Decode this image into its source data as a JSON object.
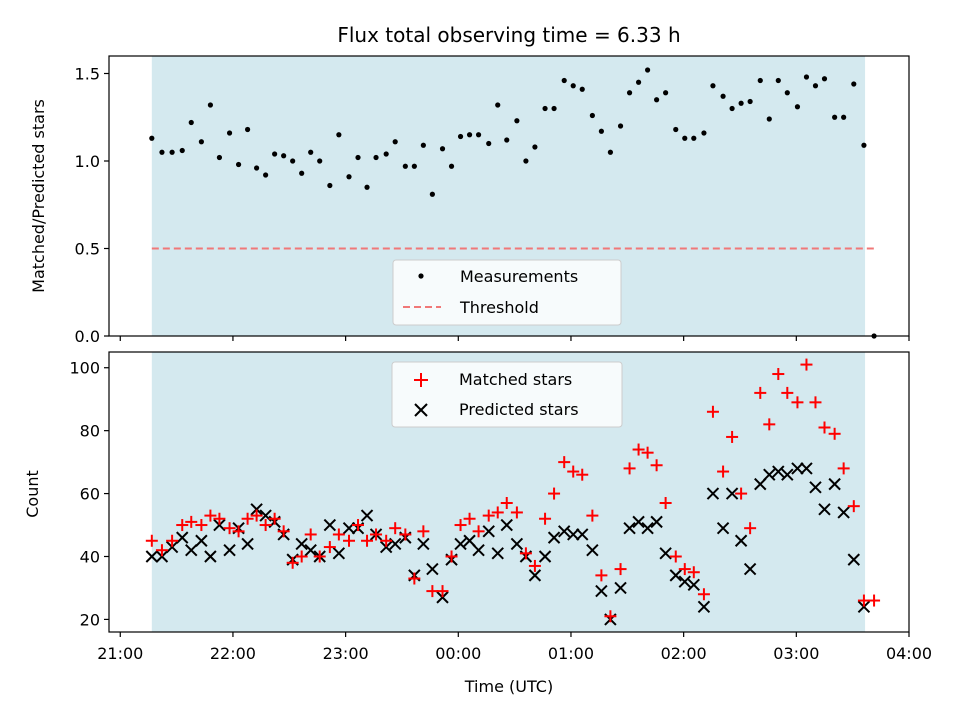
{
  "chart_data": [
    {
      "type": "scatter",
      "title": "Flux total observing time = 6.33 h",
      "xlabel": "",
      "ylabel": "Matched/Predicted stars",
      "xlim": [
        -0.1,
        7.0
      ],
      "ylim": [
        0,
        1.6
      ],
      "yticks": [
        0.0,
        0.5,
        1.0,
        1.5
      ],
      "ytick_labels": [
        "0.0",
        "0.5",
        "1.0",
        "1.5"
      ],
      "observing_window": [
        0.28,
        6.61
      ],
      "legend_position": "lower-center",
      "colors": {
        "span": "#d4e9ef",
        "points": "#000000",
        "threshold": "#f07878"
      },
      "series": [
        {
          "name": "Measurements",
          "marker": "dot",
          "points": [
            [
              0.28,
              1.13
            ],
            [
              0.37,
              1.05
            ],
            [
              0.46,
              1.05
            ],
            [
              0.55,
              1.06
            ],
            [
              0.63,
              1.22
            ],
            [
              0.72,
              1.11
            ],
            [
              0.8,
              1.32
            ],
            [
              0.88,
              1.02
            ],
            [
              0.97,
              1.16
            ],
            [
              1.05,
              0.98
            ],
            [
              1.13,
              1.18
            ],
            [
              1.21,
              0.96
            ],
            [
              1.29,
              0.92
            ],
            [
              1.37,
              1.04
            ],
            [
              1.45,
              1.03
            ],
            [
              1.53,
              1.0
            ],
            [
              1.61,
              0.93
            ],
            [
              1.69,
              1.05
            ],
            [
              1.77,
              1.0
            ],
            [
              1.86,
              0.86
            ],
            [
              1.94,
              1.15
            ],
            [
              2.03,
              0.91
            ],
            [
              2.11,
              1.02
            ],
            [
              2.19,
              0.85
            ],
            [
              2.27,
              1.02
            ],
            [
              2.36,
              1.04
            ],
            [
              2.44,
              1.11
            ],
            [
              2.53,
              0.97
            ],
            [
              2.61,
              0.97
            ],
            [
              2.69,
              1.09
            ],
            [
              2.77,
              0.81
            ],
            [
              2.86,
              1.07
            ],
            [
              2.94,
              0.97
            ],
            [
              3.02,
              1.14
            ],
            [
              3.1,
              1.15
            ],
            [
              3.18,
              1.15
            ],
            [
              3.27,
              1.1
            ],
            [
              3.35,
              1.32
            ],
            [
              3.43,
              1.12
            ],
            [
              3.52,
              1.23
            ],
            [
              3.6,
              1.0
            ],
            [
              3.68,
              1.08
            ],
            [
              3.77,
              1.3
            ],
            [
              3.85,
              1.3
            ],
            [
              3.94,
              1.46
            ],
            [
              4.02,
              1.43
            ],
            [
              4.1,
              1.41
            ],
            [
              4.19,
              1.26
            ],
            [
              4.27,
              1.17
            ],
            [
              4.35,
              1.05
            ],
            [
              4.44,
              1.2
            ],
            [
              4.52,
              1.39
            ],
            [
              4.6,
              1.45
            ],
            [
              4.68,
              1.52
            ],
            [
              4.76,
              1.35
            ],
            [
              4.84,
              1.39
            ],
            [
              4.93,
              1.18
            ],
            [
              5.01,
              1.13
            ],
            [
              5.09,
              1.13
            ],
            [
              5.18,
              1.16
            ],
            [
              5.26,
              1.43
            ],
            [
              5.35,
              1.37
            ],
            [
              5.43,
              1.3
            ],
            [
              5.51,
              1.33
            ],
            [
              5.59,
              1.34
            ],
            [
              5.68,
              1.46
            ],
            [
              5.76,
              1.24
            ],
            [
              5.84,
              1.46
            ],
            [
              5.92,
              1.39
            ],
            [
              6.01,
              1.31
            ],
            [
              6.09,
              1.48
            ],
            [
              6.17,
              1.43
            ],
            [
              6.25,
              1.47
            ],
            [
              6.34,
              1.25
            ],
            [
              6.42,
              1.25
            ],
            [
              6.51,
              1.44
            ],
            [
              6.6,
              1.09
            ],
            [
              6.69,
              0.0
            ]
          ]
        },
        {
          "name": "Threshold",
          "marker": "dashed-line",
          "x": [
            0.28,
            6.69
          ],
          "y": [
            0.5,
            0.5
          ]
        }
      ]
    },
    {
      "type": "scatter",
      "title": "",
      "xlabel": "Time (UTC)",
      "ylabel": "Count",
      "xlim": [
        -0.1,
        7.0
      ],
      "ylim": [
        16,
        105
      ],
      "yticks": [
        20,
        40,
        60,
        80,
        100
      ],
      "ytick_labels": [
        "20",
        "40",
        "60",
        "80",
        "100"
      ],
      "xticks": [
        0,
        1,
        2,
        3,
        4,
        5,
        6,
        7
      ],
      "xtick_labels": [
        "21:00",
        "22:00",
        "23:00",
        "00:00",
        "01:00",
        "02:00",
        "03:00",
        "04:00"
      ],
      "observing_window": [
        0.28,
        6.61
      ],
      "legend_position": "upper-center",
      "colors": {
        "span": "#d4e9ef",
        "matched": "#ff0000",
        "predicted": "#000000"
      },
      "series": [
        {
          "name": "Matched stars",
          "marker": "plus",
          "points": [
            [
              0.28,
              45
            ],
            [
              0.37,
              42
            ],
            [
              0.46,
              45
            ],
            [
              0.55,
              50
            ],
            [
              0.63,
              51
            ],
            [
              0.72,
              50
            ],
            [
              0.8,
              53
            ],
            [
              0.88,
              52
            ],
            [
              0.97,
              49
            ],
            [
              1.05,
              48
            ],
            [
              1.13,
              52
            ],
            [
              1.21,
              53
            ],
            [
              1.29,
              50
            ],
            [
              1.37,
              52
            ],
            [
              1.45,
              48
            ],
            [
              1.53,
              38
            ],
            [
              1.61,
              40
            ],
            [
              1.69,
              47
            ],
            [
              1.77,
              40
            ],
            [
              1.86,
              43
            ],
            [
              1.94,
              47
            ],
            [
              2.03,
              45
            ],
            [
              2.11,
              50
            ],
            [
              2.19,
              45
            ],
            [
              2.27,
              47
            ],
            [
              2.36,
              45
            ],
            [
              2.44,
              49
            ],
            [
              2.53,
              47
            ],
            [
              2.61,
              33
            ],
            [
              2.69,
              48
            ],
            [
              2.77,
              29
            ],
            [
              2.86,
              29
            ],
            [
              2.94,
              40
            ],
            [
              3.02,
              50
            ],
            [
              3.1,
              52
            ],
            [
              3.18,
              48
            ],
            [
              3.27,
              53
            ],
            [
              3.35,
              54
            ],
            [
              3.43,
              57
            ],
            [
              3.52,
              54
            ],
            [
              3.6,
              41
            ],
            [
              3.68,
              37
            ],
            [
              3.77,
              52
            ],
            [
              3.85,
              60
            ],
            [
              3.94,
              70
            ],
            [
              4.02,
              67
            ],
            [
              4.1,
              66
            ],
            [
              4.19,
              53
            ],
            [
              4.27,
              34
            ],
            [
              4.35,
              21
            ],
            [
              4.44,
              36
            ],
            [
              4.52,
              68
            ],
            [
              4.6,
              74
            ],
            [
              4.68,
              73
            ],
            [
              4.76,
              69
            ],
            [
              4.84,
              57
            ],
            [
              4.93,
              40
            ],
            [
              5.01,
              36
            ],
            [
              5.09,
              35
            ],
            [
              5.18,
              28
            ],
            [
              5.26,
              86
            ],
            [
              5.35,
              67
            ],
            [
              5.43,
              78
            ],
            [
              5.51,
              60
            ],
            [
              5.59,
              49
            ],
            [
              5.68,
              92
            ],
            [
              5.76,
              82
            ],
            [
              5.84,
              98
            ],
            [
              5.92,
              92
            ],
            [
              6.01,
              89
            ],
            [
              6.09,
              101
            ],
            [
              6.17,
              89
            ],
            [
              6.25,
              81
            ],
            [
              6.34,
              79
            ],
            [
              6.42,
              68
            ],
            [
              6.51,
              56
            ],
            [
              6.6,
              26
            ],
            [
              6.69,
              26
            ]
          ]
        },
        {
          "name": "Predicted stars",
          "marker": "x",
          "points": [
            [
              0.28,
              40
            ],
            [
              0.37,
              40
            ],
            [
              0.46,
              43
            ],
            [
              0.55,
              46
            ],
            [
              0.63,
              42
            ],
            [
              0.72,
              45
            ],
            [
              0.8,
              40
            ],
            [
              0.88,
              50
            ],
            [
              0.97,
              42
            ],
            [
              1.05,
              49
            ],
            [
              1.13,
              44
            ],
            [
              1.21,
              55
            ],
            [
              1.29,
              53
            ],
            [
              1.37,
              51
            ],
            [
              1.45,
              47
            ],
            [
              1.53,
              39
            ],
            [
              1.61,
              44
            ],
            [
              1.69,
              42
            ],
            [
              1.77,
              40
            ],
            [
              1.86,
              50
            ],
            [
              1.94,
              41
            ],
            [
              2.03,
              49
            ],
            [
              2.11,
              49
            ],
            [
              2.19,
              53
            ],
            [
              2.27,
              47
            ],
            [
              2.36,
              43
            ],
            [
              2.44,
              44
            ],
            [
              2.53,
              46
            ],
            [
              2.61,
              34
            ],
            [
              2.69,
              44
            ],
            [
              2.77,
              36
            ],
            [
              2.86,
              27
            ],
            [
              2.94,
              39
            ],
            [
              3.02,
              44
            ],
            [
              3.1,
              45
            ],
            [
              3.18,
              42
            ],
            [
              3.27,
              48
            ],
            [
              3.35,
              41
            ],
            [
              3.43,
              50
            ],
            [
              3.52,
              44
            ],
            [
              3.6,
              40
            ],
            [
              3.68,
              34
            ],
            [
              3.77,
              40
            ],
            [
              3.85,
              46
            ],
            [
              3.94,
              48
            ],
            [
              4.02,
              47
            ],
            [
              4.1,
              47
            ],
            [
              4.19,
              42
            ],
            [
              4.27,
              29
            ],
            [
              4.35,
              20
            ],
            [
              4.44,
              30
            ],
            [
              4.52,
              49
            ],
            [
              4.6,
              51
            ],
            [
              4.68,
              49
            ],
            [
              4.76,
              51
            ],
            [
              4.84,
              41
            ],
            [
              4.93,
              34
            ],
            [
              5.01,
              32
            ],
            [
              5.09,
              31
            ],
            [
              5.18,
              24
            ],
            [
              5.26,
              60
            ],
            [
              5.35,
              49
            ],
            [
              5.43,
              60
            ],
            [
              5.51,
              45
            ],
            [
              5.59,
              36
            ],
            [
              5.68,
              63
            ],
            [
              5.76,
              66
            ],
            [
              5.84,
              67
            ],
            [
              5.92,
              66
            ],
            [
              6.01,
              68
            ],
            [
              6.09,
              68
            ],
            [
              6.17,
              62
            ],
            [
              6.25,
              55
            ],
            [
              6.34,
              63
            ],
            [
              6.42,
              54
            ],
            [
              6.51,
              39
            ],
            [
              6.6,
              24
            ]
          ]
        }
      ]
    }
  ]
}
